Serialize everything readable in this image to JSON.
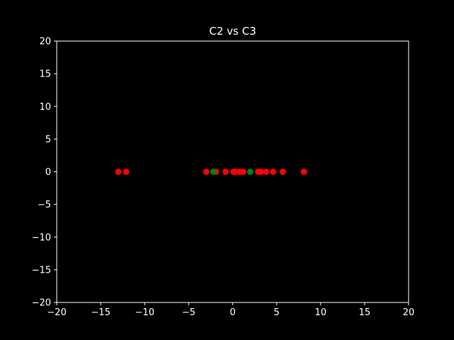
{
  "chart_data": {
    "type": "scatter",
    "title": "C2 vs C3",
    "xlabel": "",
    "ylabel": "",
    "xlim": [
      -20,
      20
    ],
    "ylim": [
      -20,
      20
    ],
    "x_ticks": [
      -20,
      -15,
      -10,
      -5,
      0,
      5,
      10,
      15,
      20
    ],
    "y_ticks": [
      -20,
      -15,
      -10,
      -5,
      0,
      5,
      10,
      15,
      20
    ],
    "x_tick_labels": [
      "−20",
      "−15",
      "−10",
      "−5",
      "0",
      "5",
      "10",
      "15",
      "20"
    ],
    "y_tick_labels": [
      "−20",
      "−15",
      "−10",
      "−5",
      "0",
      "5",
      "10",
      "15",
      "20"
    ],
    "grid": false,
    "colors": {
      "background": "#000000",
      "axes": "#ffffff",
      "text": "#ffffff"
    },
    "series": [
      {
        "color": "#ff0000",
        "points": [
          {
            "x": -13.0,
            "y": 0
          },
          {
            "x": -12.1,
            "y": 0
          },
          {
            "x": -3.0,
            "y": 0
          },
          {
            "x": -1.9,
            "y": 0
          },
          {
            "x": -0.8,
            "y": 0
          },
          {
            "x": 0.1,
            "y": 0
          },
          {
            "x": 0.3,
            "y": 0
          },
          {
            "x": 0.8,
            "y": 0
          },
          {
            "x": 1.2,
            "y": 0
          },
          {
            "x": 2.9,
            "y": 0
          },
          {
            "x": 3.2,
            "y": 0
          },
          {
            "x": 3.8,
            "y": 0
          },
          {
            "x": 4.6,
            "y": 0
          },
          {
            "x": 5.7,
            "y": 0
          },
          {
            "x": 8.1,
            "y": 0
          }
        ]
      },
      {
        "color": "#008000",
        "points": [
          {
            "x": -2.2,
            "y": 0
          },
          {
            "x": 2.0,
            "y": 0
          }
        ]
      }
    ]
  }
}
